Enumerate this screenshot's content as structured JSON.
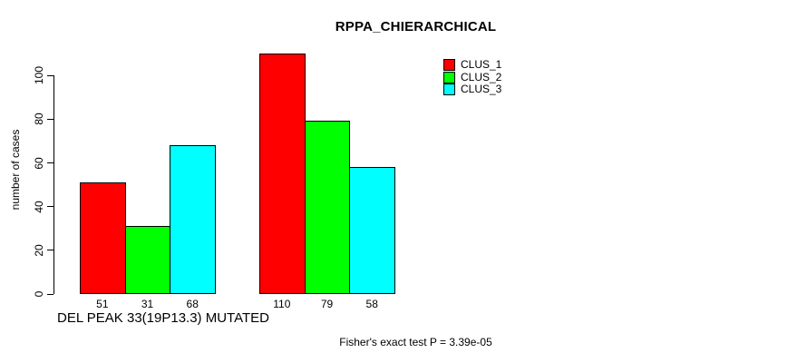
{
  "chart_data": {
    "type": "bar",
    "title": "RPPA_CHIERARCHICAL",
    "ylabel": "number of cases",
    "xlabel": "DEL PEAK 33(19P13.3) MUTATED",
    "annotation": "Fisher's exact test P = 3.39e-05",
    "groups": [
      "group-1",
      "group-2"
    ],
    "series": [
      {
        "name": "CLUS_1",
        "color": "#FF0000",
        "values": [
          51,
          110
        ]
      },
      {
        "name": "CLUS_2",
        "color": "#00FF00",
        "values": [
          31,
          79
        ]
      },
      {
        "name": "CLUS_3",
        "color": "#00FFFF",
        "values": [
          68,
          58
        ]
      }
    ],
    "bar_value_labels": [
      [
        51,
        31,
        68
      ],
      [
        110,
        79,
        58
      ]
    ],
    "yticks": [
      0,
      20,
      40,
      60,
      80,
      100
    ],
    "ylim": [
      0,
      115
    ],
    "grid": false,
    "legend_position": "top-right",
    "axis_color": "#000000",
    "background_color": "#FFFFFF"
  }
}
